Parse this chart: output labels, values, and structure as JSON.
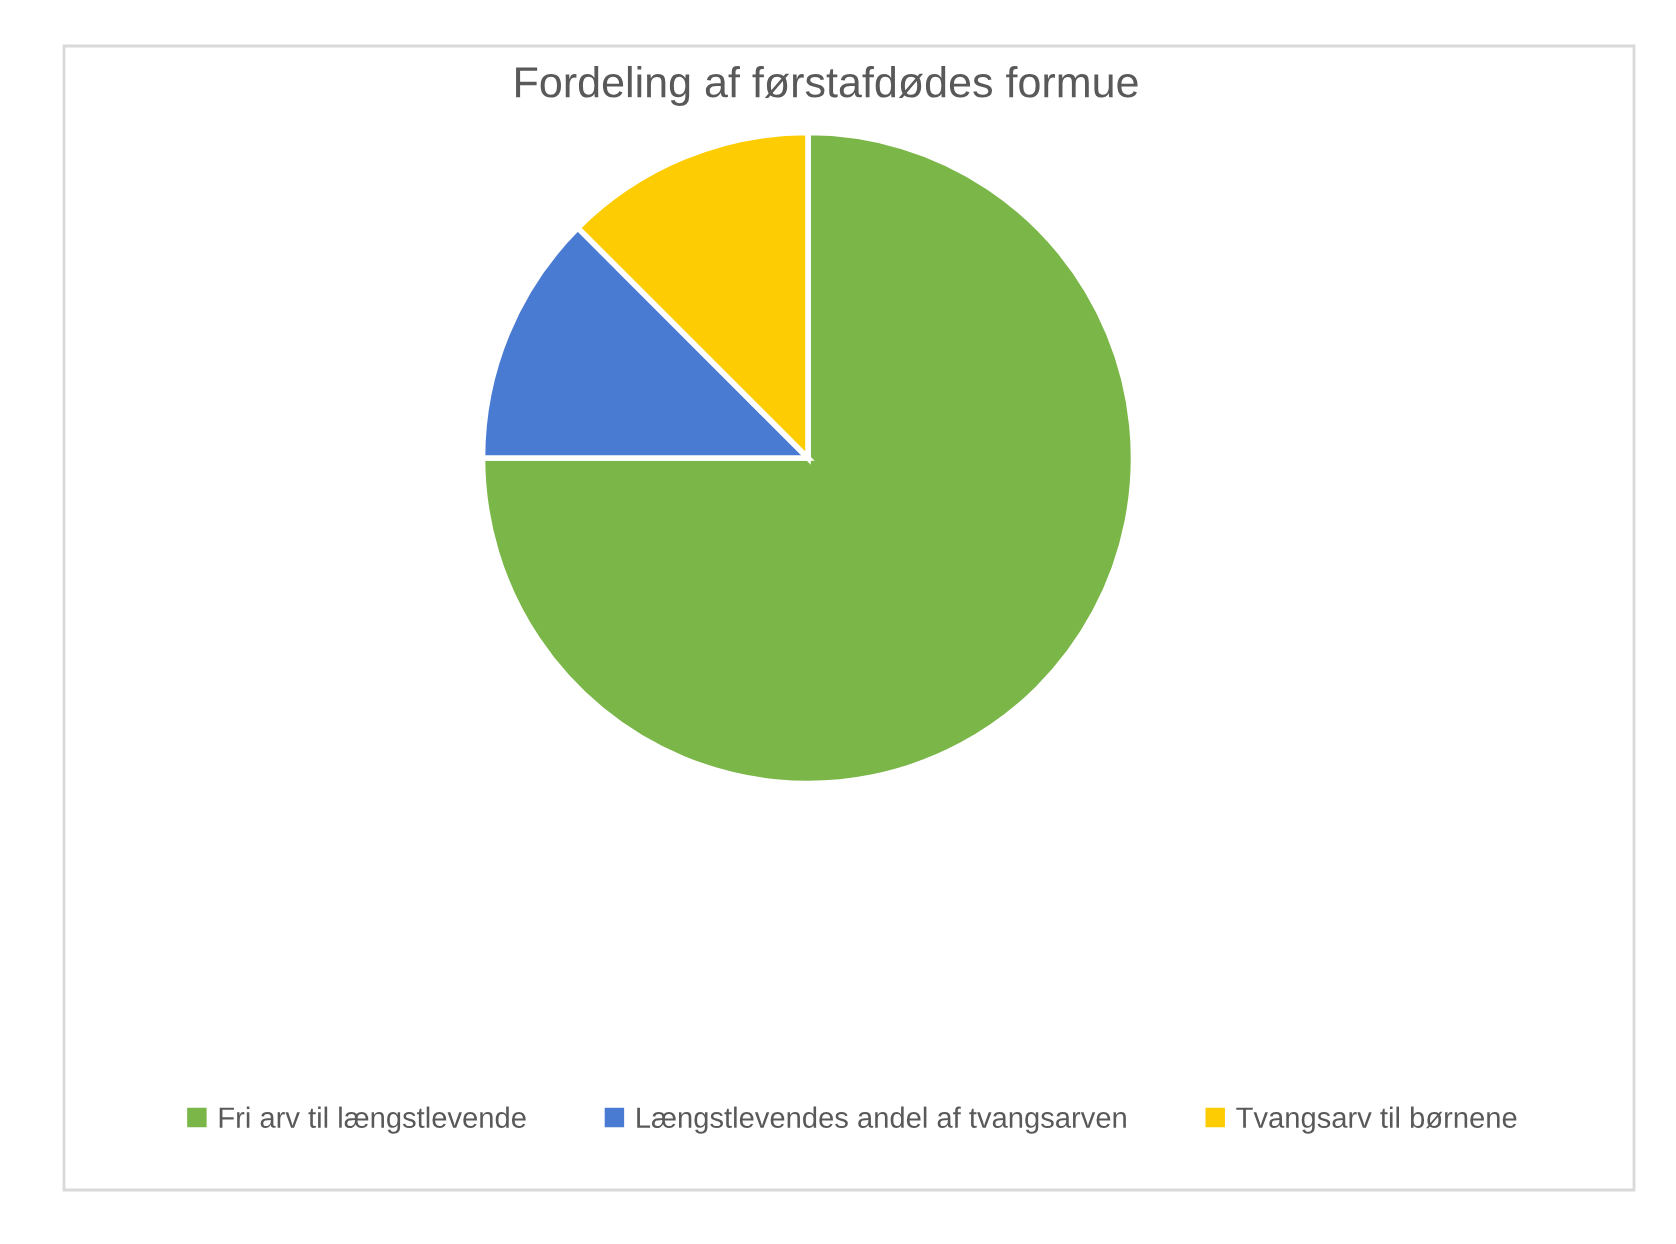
{
  "chart_data": {
    "type": "pie",
    "title": "Fordeling af førstafdødes formue",
    "categories": [
      "Fri arv til længstlevende",
      "Længstlevendes andel af tvangsarven",
      "Tvangsarv til børnene"
    ],
    "values": [
      75,
      12.5,
      12.5
    ],
    "colors": [
      "#7ab648",
      "#4a7bd3",
      "#fecc02"
    ],
    "legend": "bottom"
  }
}
